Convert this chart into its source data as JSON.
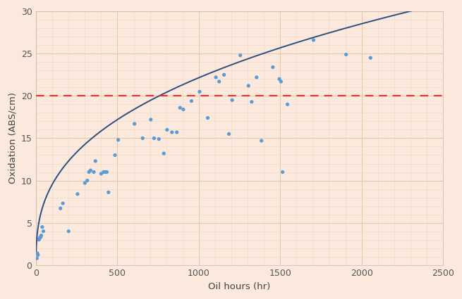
{
  "scatter_x": [
    5,
    8,
    12,
    18,
    22,
    28,
    32,
    38,
    45,
    150,
    165,
    200,
    255,
    300,
    315,
    325,
    335,
    355,
    365,
    400,
    415,
    425,
    435,
    445,
    485,
    505,
    605,
    655,
    705,
    725,
    755,
    785,
    805,
    835,
    865,
    885,
    905,
    955,
    1005,
    1055,
    1105,
    1125,
    1155,
    1185,
    1205,
    1255,
    1305,
    1325,
    1355,
    1385,
    1455,
    1495,
    1505,
    1515,
    1545,
    1705,
    1905,
    2055
  ],
  "scatter_y": [
    0.8,
    1.4,
    1.2,
    3.0,
    3.2,
    3.3,
    3.5,
    4.5,
    4.0,
    6.7,
    7.3,
    4.0,
    8.4,
    9.7,
    10.0,
    11.0,
    11.2,
    11.0,
    12.3,
    10.8,
    11.0,
    11.0,
    11.0,
    8.6,
    13.0,
    14.8,
    16.7,
    15.0,
    17.2,
    15.0,
    14.9,
    13.2,
    16.0,
    15.7,
    15.7,
    18.6,
    18.4,
    19.4,
    20.5,
    17.4,
    22.2,
    21.7,
    22.5,
    15.5,
    19.5,
    24.8,
    21.2,
    19.3,
    22.2,
    14.7,
    23.4,
    22.0,
    21.7,
    11.0,
    19.0,
    26.6,
    24.9,
    24.5
  ],
  "fit_a": 1.78,
  "fit_b": 0.365,
  "xlim": [
    0,
    2500
  ],
  "ylim": [
    0,
    30
  ],
  "xticks": [
    0,
    500,
    1000,
    1500,
    2000,
    2500
  ],
  "yticks": [
    0,
    5,
    10,
    15,
    20,
    25,
    30
  ],
  "xlabel": "Oil hours (hr)",
  "ylabel": "Oxidation (ABS/cm)",
  "dashed_y": 20,
  "scatter_color": "#5B9BD5",
  "fit_color": "#2E4E7E",
  "dashed_color": "#FF2020",
  "bg_color": "#FAE9DC",
  "grid_major_color": "#E8C8A8",
  "grid_minor_color": "#F0D8C0",
  "scatter_size": 14,
  "fit_linewidth": 1.4,
  "minor_x": 100,
  "minor_y": 1
}
